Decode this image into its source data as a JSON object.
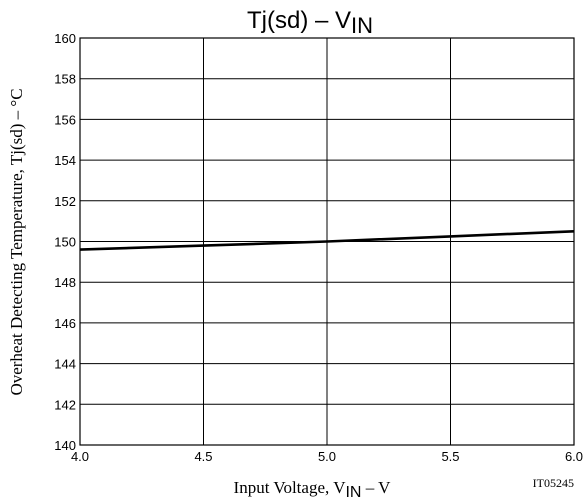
{
  "chart_data": {
    "type": "line",
    "title": "Tj(sd)  –  V",
    "title_subscript": "IN",
    "xlabel": "Input Voltage, V",
    "xlabel_subscript": "IN",
    "xlabel_suffix": "  –  V",
    "ylabel": "Overheat Detecting Temperature, Tj(sd)  –  °C",
    "code_label": "IT05245",
    "xlim": [
      4.0,
      6.0
    ],
    "ylim": [
      140,
      160
    ],
    "x_ticks": [
      "4.0",
      "4.5",
      "5.0",
      "5.5",
      "6.0"
    ],
    "y_ticks": [
      "140",
      "142",
      "144",
      "146",
      "148",
      "150",
      "152",
      "154",
      "156",
      "158",
      "160"
    ],
    "grid": true,
    "series": [
      {
        "x": [
          4.0,
          4.5,
          5.0,
          5.5,
          6.0
        ],
        "y": [
          149.6,
          149.8,
          150.0,
          150.25,
          150.5
        ]
      }
    ],
    "line_color": "#000000",
    "grid_color": "#000000"
  }
}
